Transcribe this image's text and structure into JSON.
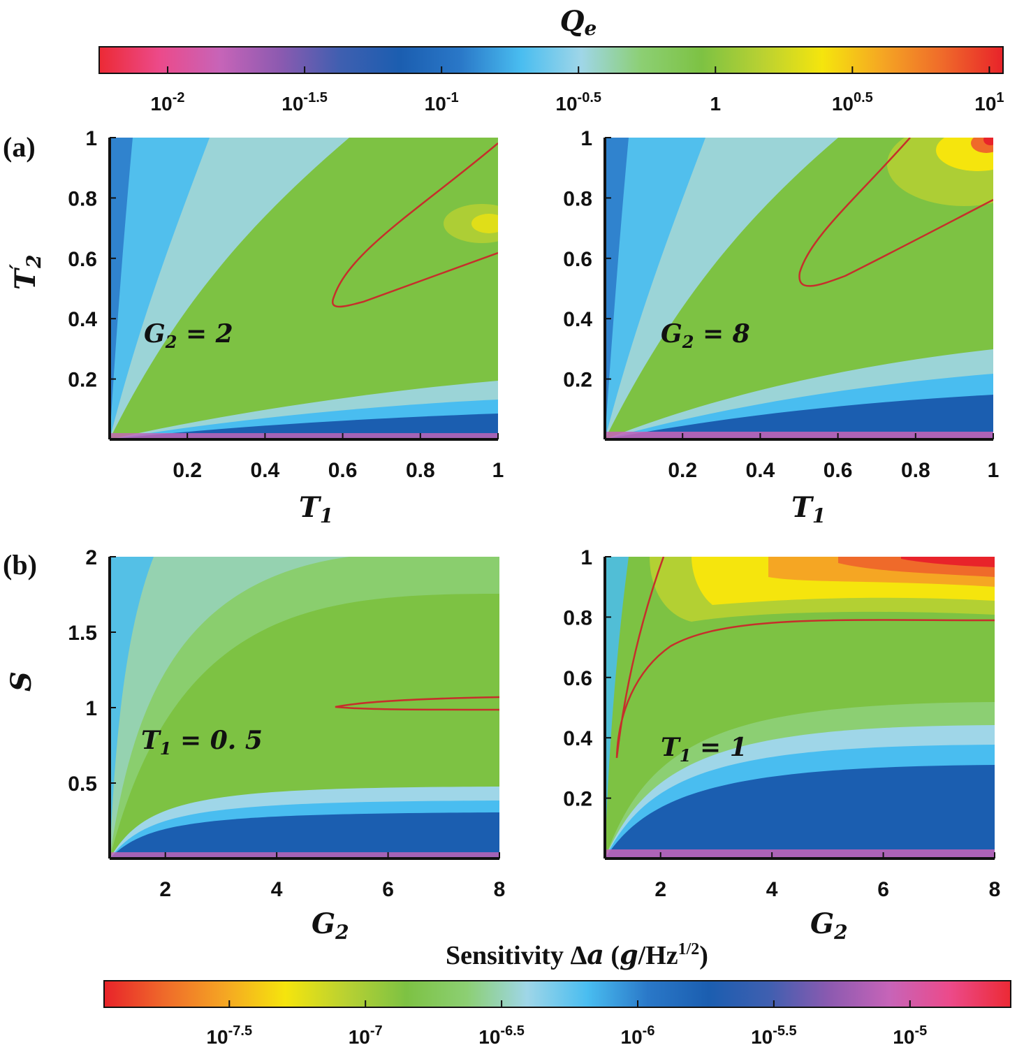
{
  "chart_data": [
    {
      "type": "heatmap",
      "panel": "(a)",
      "annotation": "G2 = 2",
      "xlabel": "T1",
      "ylabel": "T'2",
      "xlim": [
        0,
        1
      ],
      "ylim": [
        0,
        1
      ],
      "xticks": [
        "0.2",
        "0.4",
        "0.6",
        "0.8",
        "1"
      ],
      "yticks": [
        "1",
        "0.8",
        "0.6",
        "0.4",
        "0.2"
      ],
      "colorbar": "Qe",
      "contour_level": 1,
      "peak_Qe_approx": 2.5
    },
    {
      "type": "heatmap",
      "panel": "(a)",
      "annotation": "G2 = 8",
      "xlabel": "T1",
      "ylabel": "T'2",
      "xlim": [
        0,
        1
      ],
      "ylim": [
        0,
        1
      ],
      "xticks": [
        "0.2",
        "0.4",
        "0.6",
        "0.8",
        "1"
      ],
      "yticks": [
        "1",
        "0.8",
        "0.6",
        "0.4",
        "0.2"
      ],
      "colorbar": "Qe",
      "contour_level": 1,
      "peak_Qe_approx": 10
    },
    {
      "type": "heatmap",
      "panel": "(b)",
      "annotation": "T1 = 0.5",
      "xlabel": "G2",
      "ylabel": "S",
      "xlim": [
        1,
        8
      ],
      "ylim": [
        0,
        2
      ],
      "xticks": [
        "2",
        "4",
        "6",
        "8"
      ],
      "yticks": [
        "2",
        "1.5",
        "1",
        "0.5"
      ],
      "colorbar": "Sensitivity",
      "contour_level": "Qe = 1"
    },
    {
      "type": "heatmap",
      "panel": "(b)",
      "annotation": "T1 = 1",
      "xlabel": "G2",
      "ylabel": "S",
      "xlim": [
        1,
        8
      ],
      "ylim": [
        0,
        1
      ],
      "xticks": [
        "2",
        "4",
        "6",
        "8"
      ],
      "yticks": [
        "1",
        "0.8",
        "0.6",
        "0.4",
        "0.2"
      ],
      "colorbar": "Sensitivity",
      "contour_level": "Qe = 1"
    }
  ],
  "colorbar_top": {
    "title_main": "Q",
    "title_sub": "e",
    "scale": "log10",
    "range": [
      -2.25,
      1.05
    ],
    "ticks": [
      {
        "value": -2,
        "base": "10",
        "exp": "-2"
      },
      {
        "value": -1.5,
        "base": "10",
        "exp": "-1.5"
      },
      {
        "value": -1,
        "base": "10",
        "exp": "-1"
      },
      {
        "value": -0.5,
        "base": "10",
        "exp": "-0.5"
      },
      {
        "value": 0,
        "base": "1",
        "exp": ""
      },
      {
        "value": 0.5,
        "base": "10",
        "exp": "0.5"
      },
      {
        "value": 1,
        "base": "10",
        "exp": "1"
      }
    ]
  },
  "colorbar_bottom": {
    "title_text": "Sensitivity Δ",
    "title_var": "a",
    "title_unit_open": " (",
    "title_unit_g": "g",
    "title_unit_hz": "/Hz",
    "title_unit_exp": "1/2",
    "title_unit_close": ")",
    "scale": "log10",
    "range": [
      -7.96,
      -4.63
    ],
    "ticks": [
      {
        "value": -7.5,
        "base": "10",
        "exp": "-7.5"
      },
      {
        "value": -7,
        "base": "10",
        "exp": "-7"
      },
      {
        "value": -6.5,
        "base": "10",
        "exp": "-6.5"
      },
      {
        "value": -6,
        "base": "10",
        "exp": "-6"
      },
      {
        "value": -5.5,
        "base": "10",
        "exp": "-5.5"
      },
      {
        "value": -5,
        "base": "10",
        "exp": "-5"
      }
    ]
  },
  "labels": {
    "panel_a": "(a)",
    "panel_b": "(b)",
    "ann_a1_var": "G",
    "ann_a1_sub": "2",
    "ann_a1_val": " = 2",
    "ann_a2_var": "G",
    "ann_a2_sub": "2",
    "ann_a2_val": " = 8",
    "ann_b1_var": "T",
    "ann_b1_sub": "1",
    "ann_b1_val": " = 0. 5",
    "ann_b2_var": "T",
    "ann_b2_sub": "1",
    "ann_b2_val": " = 1",
    "xlabel_a_var": "T",
    "xlabel_a_sub": "1",
    "xlabel_b_var": "G",
    "xlabel_b_sub": "2",
    "ylabel_a_var": "T",
    "ylabel_a_prime": "′",
    "ylabel_a_sub": "2",
    "ylabel_b": "S"
  },
  "colors": {
    "scale": [
      "#ec2a35",
      "#ec4a8a",
      "#c764b8",
      "#8c5ab0",
      "#3f5fb0",
      "#1b5eb0",
      "#2a78c8",
      "#49bdf0",
      "#9fd6e8",
      "#8ccf73",
      "#7dc243",
      "#b9d132",
      "#f5e50d",
      "#f5a623",
      "#ef6a2a",
      "#e8232a"
    ],
    "contour": "#c62f2b"
  }
}
